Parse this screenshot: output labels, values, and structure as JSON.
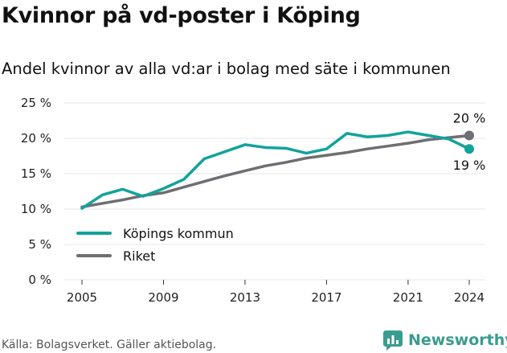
{
  "header": {
    "title": "Kvinnor på vd-poster i Köping",
    "subtitle": "Andel kvinnor av alla vd:ar i bolag med säte i kommunen"
  },
  "footer": {
    "source": "Källa: Bolagsverket. Gäller aktiebolag.",
    "brand": "Newsworthy"
  },
  "colors": {
    "kommun": "#12a39a",
    "riket": "#6e6e73",
    "grid": "#e6e6e6",
    "brand": "#3a9c8f"
  },
  "chart_data": {
    "type": "line",
    "x": [
      2005,
      2006,
      2007,
      2008,
      2009,
      2010,
      2011,
      2012,
      2013,
      2014,
      2015,
      2016,
      2017,
      2018,
      2019,
      2020,
      2021,
      2022,
      2023,
      2024
    ],
    "series": [
      {
        "name": "Köpings kommun",
        "values": [
          10.1,
          12.0,
          12.8,
          11.8,
          12.9,
          14.2,
          17.1,
          18.1,
          19.1,
          18.7,
          18.6,
          17.9,
          18.5,
          20.7,
          20.2,
          20.4,
          20.9,
          20.4,
          19.9,
          18.5
        ]
      },
      {
        "name": "Riket",
        "values": [
          10.3,
          10.8,
          11.3,
          11.9,
          12.3,
          13.1,
          13.9,
          14.7,
          15.4,
          16.1,
          16.6,
          17.2,
          17.6,
          18.0,
          18.5,
          18.9,
          19.3,
          19.8,
          20.1,
          20.4
        ]
      }
    ],
    "xticks": [
      "2005",
      "2009",
      "2013",
      "2017",
      "2021",
      "2024"
    ],
    "xtick_values": [
      2005,
      2009,
      2013,
      2017,
      2021,
      2024
    ],
    "yticks": [
      "0 %",
      "5 %",
      "10 %",
      "15 %",
      "20 %",
      "25 %"
    ],
    "ytick_values": [
      0,
      5,
      10,
      15,
      20,
      25
    ],
    "ylim": [
      0,
      25
    ],
    "xlim": [
      2005,
      2024
    ],
    "end_labels": {
      "riket": "20 %",
      "kommun": "19 %"
    },
    "grid": true,
    "legend": "bottom-left"
  }
}
